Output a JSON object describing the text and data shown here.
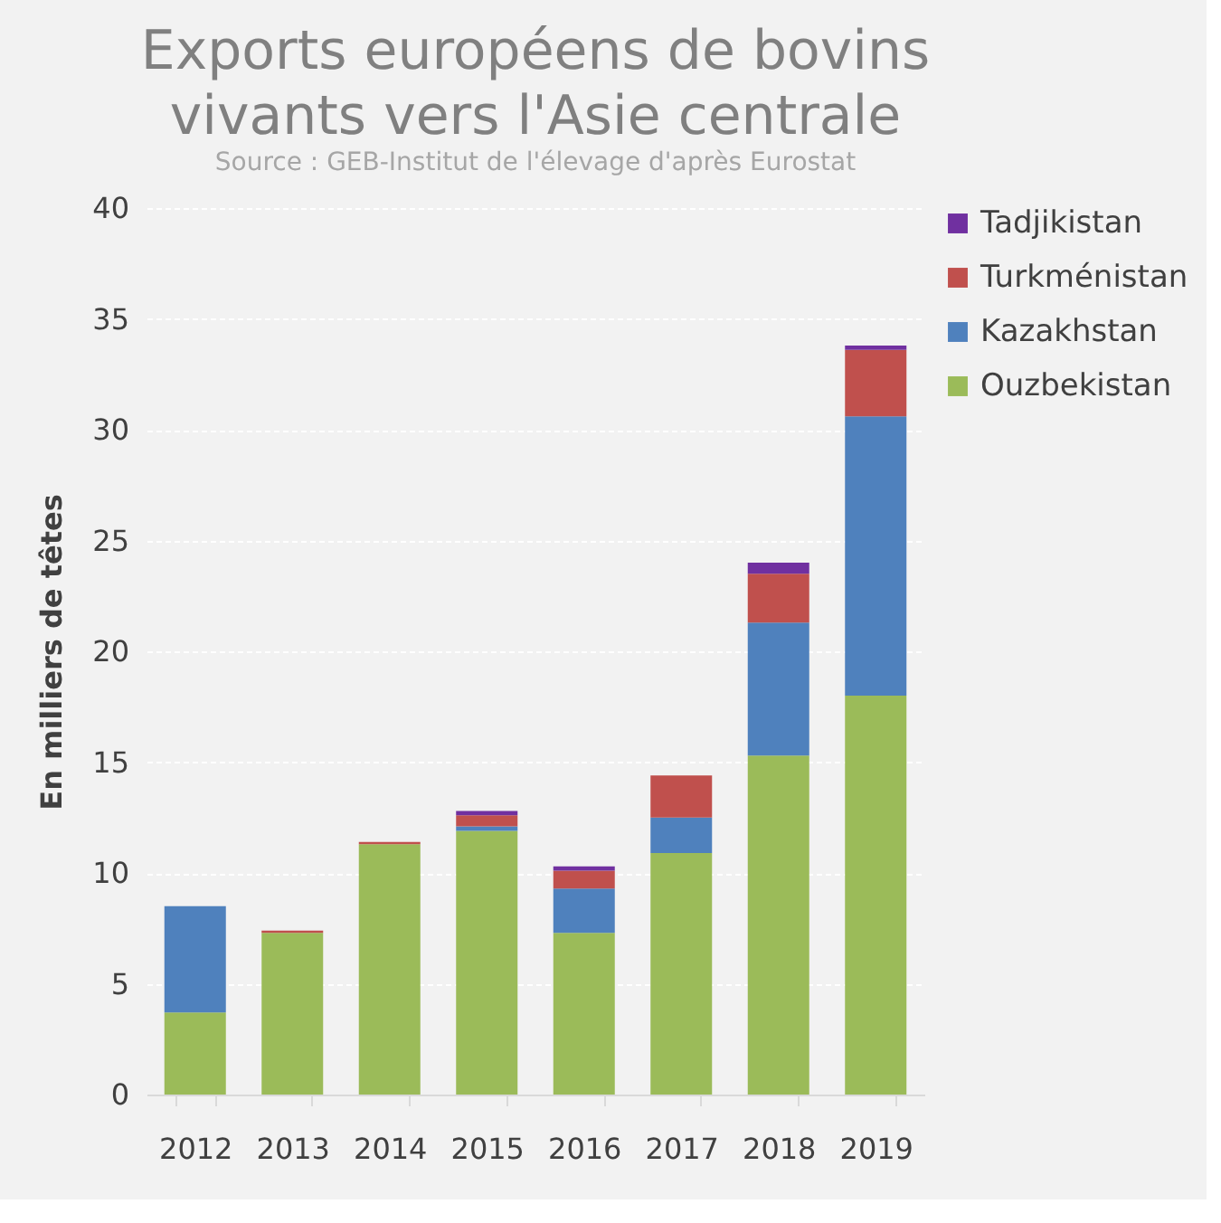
{
  "chart_data": {
    "type": "bar",
    "title": "Exports européens de bovins vivants vers l'Asie centrale",
    "subtitle": "Source : GEB-Institut de l'élevage d'après Eurostat",
    "ylabel": "En milliers de têtes",
    "categories": [
      "2012",
      "2013",
      "2014",
      "2015",
      "2016",
      "2017",
      "2018",
      "2019"
    ],
    "stacked": true,
    "series": [
      {
        "name": "Ouzbekistan",
        "color": "#9bbb59",
        "values": [
          3.7,
          7.3,
          11.3,
          11.9,
          7.3,
          10.9,
          15.3,
          18.0
        ]
      },
      {
        "name": "Kazakhstan",
        "color": "#4f81bd",
        "values": [
          4.8,
          null,
          null,
          0.2,
          2.0,
          1.6,
          6.0,
          12.6
        ]
      },
      {
        "name": "Turkménistan",
        "color": "#c0504d",
        "values": [
          null,
          0.1,
          0.1,
          0.5,
          0.8,
          1.9,
          2.2,
          3.0
        ]
      },
      {
        "name": "Tadjikistan",
        "color": "#7030a0",
        "values": [
          null,
          null,
          null,
          0.2,
          0.2,
          null,
          0.5,
          0.2
        ]
      }
    ],
    "ylim": [
      0,
      40
    ],
    "yticks": [
      0,
      5,
      10,
      15,
      20,
      25,
      30,
      35,
      40
    ],
    "grid": "y",
    "legend": "right"
  }
}
